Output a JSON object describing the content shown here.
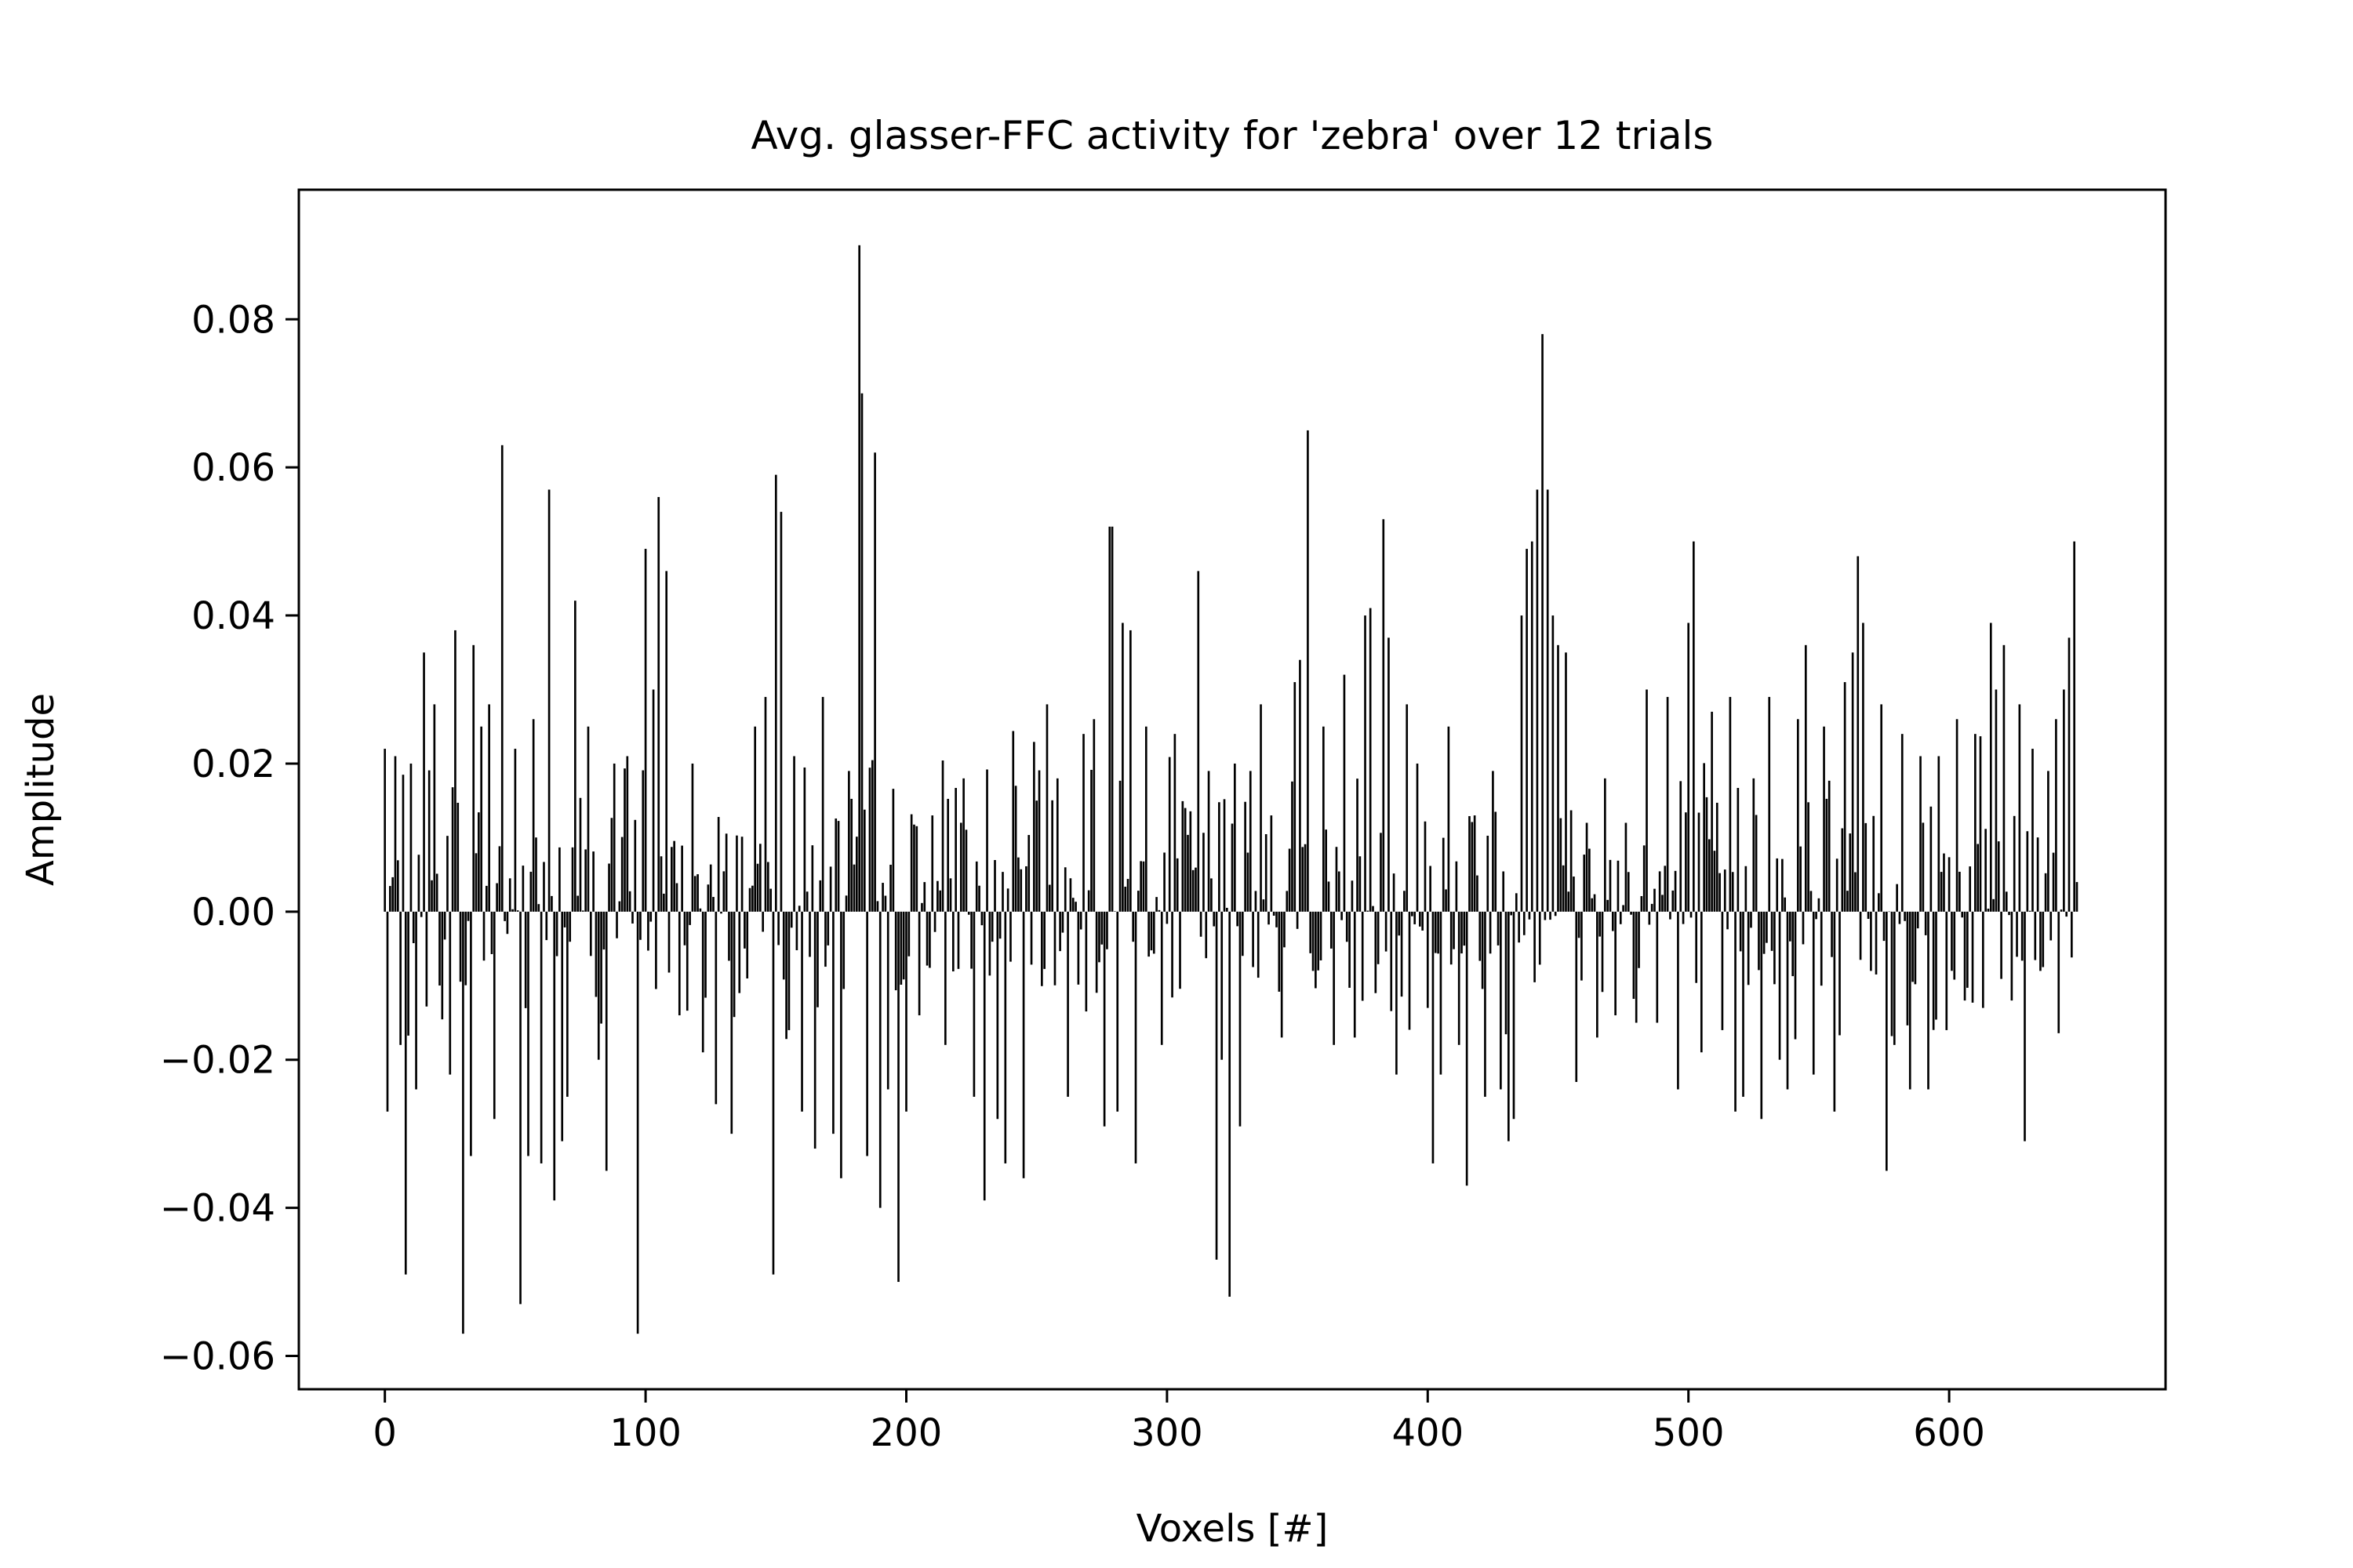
{
  "chart_data": {
    "type": "bar",
    "title": "Avg. glasser-FFC activity for 'zebra' over 12 trials",
    "xlabel": "Voxels [#]",
    "ylabel": "Amplitude",
    "xlim": [
      -33,
      683
    ],
    "ylim": [
      -0.0645,
      0.0975
    ],
    "xticks": [
      0,
      100,
      200,
      300,
      400,
      500,
      600
    ],
    "xtick_labels": [
      "0",
      "100",
      "200",
      "300",
      "400",
      "500",
      "600"
    ],
    "yticks": [
      -0.06,
      -0.04,
      -0.02,
      0.0,
      0.02,
      0.04,
      0.06,
      0.08
    ],
    "ytick_labels": [
      "−0.06",
      "−0.04",
      "−0.02",
      "0.00",
      "0.02",
      "0.04",
      "0.06",
      "0.08"
    ],
    "grid": false,
    "bar_color": "#000000",
    "n_voxels": 650,
    "peaks": [
      {
        "x": 0,
        "y": 0.022
      },
      {
        "x": 1,
        "y": -0.027
      },
      {
        "x": 4,
        "y": 0.021
      },
      {
        "x": 6,
        "y": -0.018
      },
      {
        "x": 8,
        "y": -0.049
      },
      {
        "x": 10,
        "y": 0.02
      },
      {
        "x": 12,
        "y": -0.024
      },
      {
        "x": 15,
        "y": 0.035
      },
      {
        "x": 19,
        "y": 0.028
      },
      {
        "x": 25,
        "y": -0.022
      },
      {
        "x": 27,
        "y": 0.038
      },
      {
        "x": 30,
        "y": -0.057
      },
      {
        "x": 33,
        "y": -0.033
      },
      {
        "x": 34,
        "y": 0.036
      },
      {
        "x": 37,
        "y": 0.025
      },
      {
        "x": 40,
        "y": 0.028
      },
      {
        "x": 42,
        "y": -0.028
      },
      {
        "x": 45,
        "y": 0.063
      },
      {
        "x": 50,
        "y": 0.022
      },
      {
        "x": 52,
        "y": -0.053
      },
      {
        "x": 55,
        "y": -0.033
      },
      {
        "x": 57,
        "y": 0.026
      },
      {
        "x": 60,
        "y": -0.034
      },
      {
        "x": 63,
        "y": 0.057
      },
      {
        "x": 65,
        "y": -0.039
      },
      {
        "x": 68,
        "y": -0.031
      },
      {
        "x": 70,
        "y": -0.025
      },
      {
        "x": 73,
        "y": 0.042
      },
      {
        "x": 78,
        "y": 0.025
      },
      {
        "x": 82,
        "y": -0.02
      },
      {
        "x": 85,
        "y": -0.035
      },
      {
        "x": 88,
        "y": 0.02
      },
      {
        "x": 93,
        "y": 0.021
      },
      {
        "x": 97,
        "y": -0.057
      },
      {
        "x": 100,
        "y": 0.049
      },
      {
        "x": 103,
        "y": 0.03
      },
      {
        "x": 105,
        "y": 0.056
      },
      {
        "x": 108,
        "y": 0.046
      },
      {
        "x": 113,
        "y": -0.014
      },
      {
        "x": 118,
        "y": 0.02
      },
      {
        "x": 122,
        "y": -0.019
      },
      {
        "x": 127,
        "y": -0.026
      },
      {
        "x": 133,
        "y": -0.03
      },
      {
        "x": 142,
        "y": 0.025
      },
      {
        "x": 146,
        "y": 0.029
      },
      {
        "x": 149,
        "y": -0.049
      },
      {
        "x": 150,
        "y": 0.059
      },
      {
        "x": 152,
        "y": 0.054
      },
      {
        "x": 155,
        "y": -0.016
      },
      {
        "x": 157,
        "y": 0.021
      },
      {
        "x": 160,
        "y": -0.027
      },
      {
        "x": 165,
        "y": -0.032
      },
      {
        "x": 168,
        "y": 0.029
      },
      {
        "x": 172,
        "y": -0.03
      },
      {
        "x": 175,
        "y": -0.036
      },
      {
        "x": 178,
        "y": 0.019
      },
      {
        "x": 182,
        "y": 0.09
      },
      {
        "x": 183,
        "y": 0.07
      },
      {
        "x": 185,
        "y": -0.033
      },
      {
        "x": 188,
        "y": 0.062
      },
      {
        "x": 190,
        "y": -0.04
      },
      {
        "x": 193,
        "y": -0.024
      },
      {
        "x": 197,
        "y": -0.05
      },
      {
        "x": 200,
        "y": -0.027
      },
      {
        "x": 205,
        "y": -0.014
      },
      {
        "x": 210,
        "y": 0.013
      },
      {
        "x": 215,
        "y": -0.018
      },
      {
        "x": 222,
        "y": 0.018
      },
      {
        "x": 226,
        "y": -0.025
      },
      {
        "x": 230,
        "y": -0.039
      },
      {
        "x": 235,
        "y": -0.028
      },
      {
        "x": 238,
        "y": -0.034
      },
      {
        "x": 242,
        "y": 0.017
      },
      {
        "x": 245,
        "y": -0.036
      },
      {
        "x": 250,
        "y": 0.015
      },
      {
        "x": 254,
        "y": 0.028
      },
      {
        "x": 258,
        "y": 0.018
      },
      {
        "x": 262,
        "y": -0.025
      },
      {
        "x": 268,
        "y": 0.024
      },
      {
        "x": 272,
        "y": 0.026
      },
      {
        "x": 276,
        "y": -0.029
      },
      {
        "x": 278,
        "y": 0.052
      },
      {
        "x": 279,
        "y": 0.052
      },
      {
        "x": 281,
        "y": -0.027
      },
      {
        "x": 283,
        "y": 0.039
      },
      {
        "x": 286,
        "y": 0.038
      },
      {
        "x": 288,
        "y": -0.034
      },
      {
        "x": 292,
        "y": 0.025
      },
      {
        "x": 298,
        "y": -0.018
      },
      {
        "x": 303,
        "y": 0.024
      },
      {
        "x": 307,
        "y": 0.014
      },
      {
        "x": 312,
        "y": 0.046
      },
      {
        "x": 316,
        "y": 0.019
      },
      {
        "x": 319,
        "y": -0.047
      },
      {
        "x": 321,
        "y": -0.02
      },
      {
        "x": 324,
        "y": -0.052
      },
      {
        "x": 326,
        "y": 0.02
      },
      {
        "x": 328,
        "y": -0.029
      },
      {
        "x": 332,
        "y": 0.019
      },
      {
        "x": 336,
        "y": 0.028
      },
      {
        "x": 340,
        "y": 0.013
      },
      {
        "x": 344,
        "y": -0.017
      },
      {
        "x": 349,
        "y": 0.031
      },
      {
        "x": 351,
        "y": 0.034
      },
      {
        "x": 354,
        "y": 0.065
      },
      {
        "x": 356,
        "y": -0.008
      },
      {
        "x": 360,
        "y": 0.025
      },
      {
        "x": 364,
        "y": -0.018
      },
      {
        "x": 368,
        "y": 0.032
      },
      {
        "x": 372,
        "y": -0.017
      },
      {
        "x": 376,
        "y": 0.04
      },
      {
        "x": 378,
        "y": 0.041
      },
      {
        "x": 380,
        "y": -0.011
      },
      {
        "x": 383,
        "y": 0.053
      },
      {
        "x": 385,
        "y": 0.037
      },
      {
        "x": 388,
        "y": -0.022
      },
      {
        "x": 392,
        "y": 0.028
      },
      {
        "x": 396,
        "y": 0.02
      },
      {
        "x": 400,
        "y": -0.013
      },
      {
        "x": 402,
        "y": -0.034
      },
      {
        "x": 405,
        "y": -0.022
      },
      {
        "x": 408,
        "y": 0.025
      },
      {
        "x": 412,
        "y": -0.018
      },
      {
        "x": 415,
        "y": -0.037
      },
      {
        "x": 418,
        "y": 0.013
      },
      {
        "x": 422,
        "y": -0.025
      },
      {
        "x": 425,
        "y": 0.019
      },
      {
        "x": 428,
        "y": -0.024
      },
      {
        "x": 431,
        "y": -0.031
      },
      {
        "x": 433,
        "y": -0.028
      },
      {
        "x": 436,
        "y": 0.04
      },
      {
        "x": 438,
        "y": 0.049
      },
      {
        "x": 440,
        "y": 0.05
      },
      {
        "x": 442,
        "y": 0.057
      },
      {
        "x": 444,
        "y": 0.078
      },
      {
        "x": 446,
        "y": 0.057
      },
      {
        "x": 448,
        "y": 0.04
      },
      {
        "x": 450,
        "y": 0.036
      },
      {
        "x": 453,
        "y": 0.035
      },
      {
        "x": 457,
        "y": -0.023
      },
      {
        "x": 461,
        "y": 0.012
      },
      {
        "x": 465,
        "y": -0.017
      },
      {
        "x": 468,
        "y": 0.018
      },
      {
        "x": 472,
        "y": -0.014
      },
      {
        "x": 476,
        "y": 0.012
      },
      {
        "x": 480,
        "y": -0.015
      },
      {
        "x": 484,
        "y": 0.03
      },
      {
        "x": 488,
        "y": -0.015
      },
      {
        "x": 492,
        "y": 0.029
      },
      {
        "x": 496,
        "y": -0.024
      },
      {
        "x": 500,
        "y": 0.039
      },
      {
        "x": 502,
        "y": 0.05
      },
      {
        "x": 505,
        "y": -0.019
      },
      {
        "x": 509,
        "y": 0.027
      },
      {
        "x": 513,
        "y": -0.016
      },
      {
        "x": 516,
        "y": 0.029
      },
      {
        "x": 518,
        "y": -0.027
      },
      {
        "x": 521,
        "y": -0.025
      },
      {
        "x": 525,
        "y": 0.018
      },
      {
        "x": 528,
        "y": -0.028
      },
      {
        "x": 531,
        "y": 0.029
      },
      {
        "x": 535,
        "y": -0.02
      },
      {
        "x": 538,
        "y": -0.024
      },
      {
        "x": 542,
        "y": 0.026
      },
      {
        "x": 545,
        "y": 0.036
      },
      {
        "x": 548,
        "y": -0.022
      },
      {
        "x": 552,
        "y": 0.025
      },
      {
        "x": 556,
        "y": -0.027
      },
      {
        "x": 560,
        "y": 0.031
      },
      {
        "x": 563,
        "y": 0.035
      },
      {
        "x": 565,
        "y": 0.048
      },
      {
        "x": 567,
        "y": 0.039
      },
      {
        "x": 570,
        "y": -0.008
      },
      {
        "x": 574,
        "y": 0.028
      },
      {
        "x": 576,
        "y": -0.035
      },
      {
        "x": 579,
        "y": -0.018
      },
      {
        "x": 582,
        "y": 0.024
      },
      {
        "x": 585,
        "y": -0.024
      },
      {
        "x": 589,
        "y": 0.021
      },
      {
        "x": 592,
        "y": -0.024
      },
      {
        "x": 596,
        "y": 0.021
      },
      {
        "x": 599,
        "y": -0.016
      },
      {
        "x": 603,
        "y": 0.026
      },
      {
        "x": 606,
        "y": -0.012
      },
      {
        "x": 610,
        "y": 0.024
      },
      {
        "x": 613,
        "y": -0.013
      },
      {
        "x": 616,
        "y": 0.039
      },
      {
        "x": 618,
        "y": 0.03
      },
      {
        "x": 621,
        "y": 0.036
      },
      {
        "x": 624,
        "y": -0.012
      },
      {
        "x": 627,
        "y": 0.028
      },
      {
        "x": 629,
        "y": -0.031
      },
      {
        "x": 632,
        "y": 0.022
      },
      {
        "x": 635,
        "y": -0.008
      },
      {
        "x": 638,
        "y": 0.019
      },
      {
        "x": 641,
        "y": 0.026
      },
      {
        "x": 644,
        "y": 0.03
      },
      {
        "x": 646,
        "y": 0.037
      },
      {
        "x": 648,
        "y": 0.05
      },
      {
        "x": 649,
        "y": 0.004
      }
    ]
  }
}
